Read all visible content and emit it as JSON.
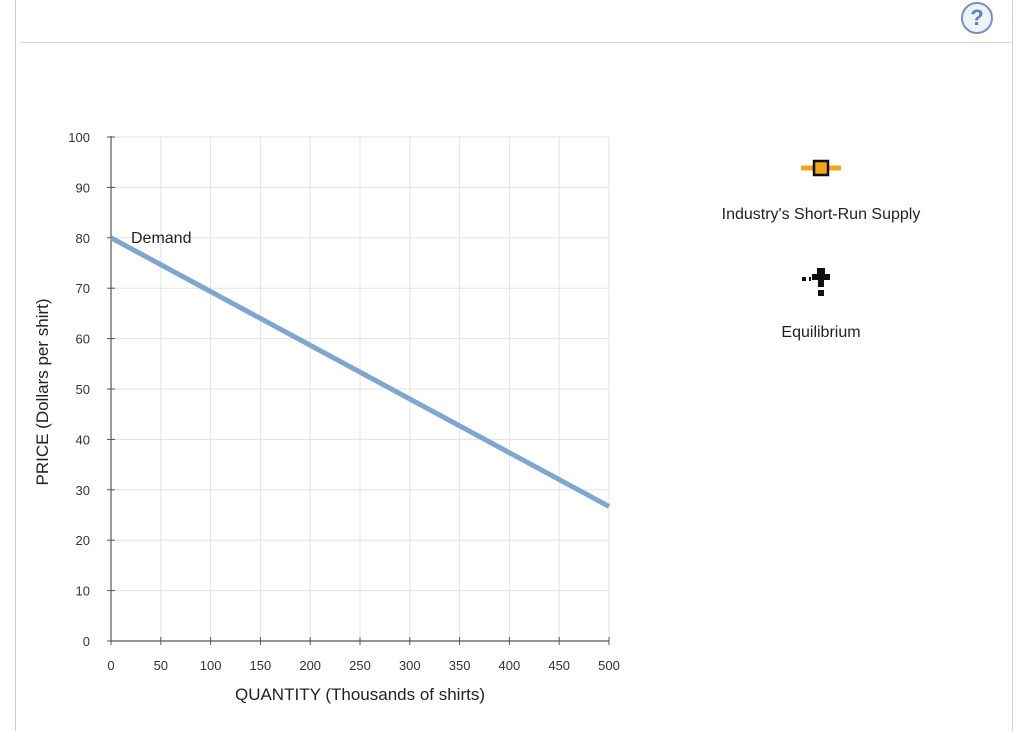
{
  "help": {
    "label": "?"
  },
  "chart_data": {
    "type": "line",
    "xlabel": "QUANTITY (Thousands of shirts)",
    "ylabel": "PRICE (Dollars per shirt)",
    "xlim": [
      0,
      500
    ],
    "ylim": [
      0,
      100
    ],
    "x_ticks": [
      0,
      50,
      100,
      150,
      200,
      250,
      300,
      350,
      400,
      450,
      500
    ],
    "y_ticks": [
      0,
      10,
      20,
      30,
      40,
      50,
      60,
      70,
      80,
      90,
      100
    ],
    "grid": true,
    "series": [
      {
        "name": "Demand",
        "color": "#7fa6d0",
        "x": [
          0,
          500
        ],
        "y": [
          80,
          26.7
        ]
      }
    ]
  },
  "legend": {
    "items": [
      {
        "label": "Industry's Short-Run Supply",
        "icon": "orange-square-line-icon",
        "color": "#f5a31a"
      },
      {
        "label": "Equilibrium",
        "icon": "black-plus-icon",
        "color": "#111111"
      }
    ]
  }
}
